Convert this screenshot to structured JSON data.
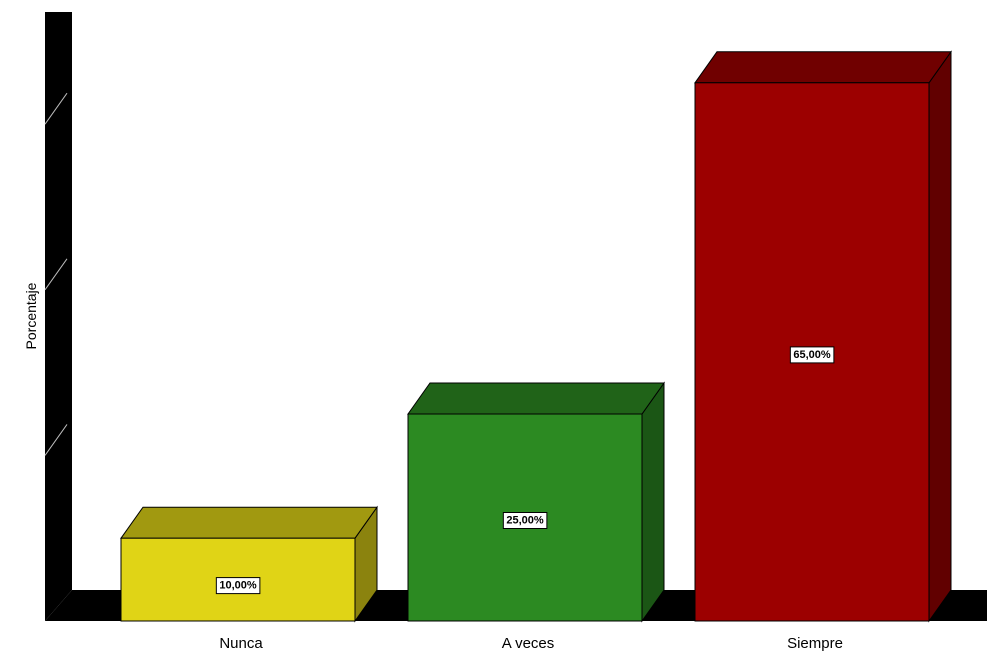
{
  "chart_data": {
    "type": "bar",
    "three_d": true,
    "categories": [
      "Nunca",
      "A veces",
      "Siempre"
    ],
    "values": [
      10,
      25,
      65
    ],
    "data_labels": [
      "10,00%",
      "25,00%",
      "65,00%"
    ],
    "colors": [
      "#e0d416",
      "#2c8a22",
      "#9c0000"
    ],
    "title": "",
    "xlabel": "",
    "ylabel": "Porcentaje",
    "ylim": [
      0,
      70
    ],
    "grid": false,
    "legend": "none"
  }
}
